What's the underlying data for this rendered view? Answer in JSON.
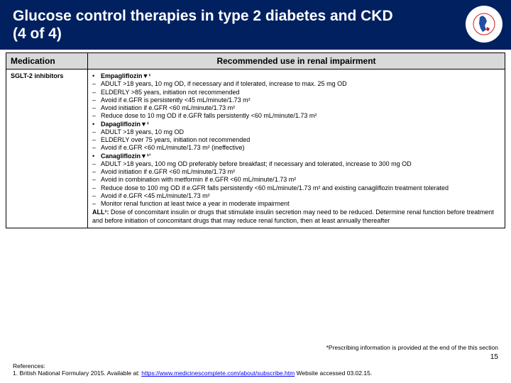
{
  "header": {
    "title": "Glucose control therapies in type 2 diabetes and CKD (4 of 4)",
    "logo_colors": {
      "outer_ring": "#c81e1e",
      "map": "#1e4fa3",
      "accent": "#c81e1e"
    }
  },
  "table": {
    "col_medication": "Medication",
    "col_recommended": "Recommended use in renal impairment",
    "medication": "SGLT-2 inhibitors",
    "rows": [
      {
        "marker": "•",
        "drug": true,
        "text": "Empagliflozin▼¹"
      },
      {
        "marker": "–",
        "text": "ADULT >18 years, 10 mg OD, if necessary and if tolerated, increase to max. 25 mg OD"
      },
      {
        "marker": "–",
        "text": "ELDERLY >85 years, initiation not recommended"
      },
      {
        "marker": "–",
        "text": "Avoid if e.GFR is persistently <45 mL/minute/1.73 m²"
      },
      {
        "marker": "–",
        "text": "Avoid initiation if e.GFR <60 mL/minute/1.73 m²"
      },
      {
        "marker": "–",
        "text": "Reduce dose to 10 mg OD if e.GFR falls persistently <60 mL/minute/1.73 m²"
      },
      {
        "marker": "•",
        "drug": true,
        "text": "Dapagliflozin▼¹"
      },
      {
        "marker": "–",
        "text": "ADULT >18 years, 10 mg OD"
      },
      {
        "marker": "–",
        "text": "ELDERLY over 75 years, initiation not recommended"
      },
      {
        "marker": "–",
        "text": "Avoid if e.GFR <60 mL/minute/1.73 m² (ineffective)"
      },
      {
        "marker": "•",
        "drug": true,
        "text": "Canagliflozin▼¹ʼ"
      },
      {
        "marker": "–",
        "text": "ADULT >18 years, 100 mg OD preferably before breakfast; if necessary and tolerated, increase to 300 mg OD"
      },
      {
        "marker": "–",
        "text": "Avoid initiation if e.GFR <60 mL/minute/1.73 m²"
      },
      {
        "marker": "–",
        "text": "Avoid in combination with metformin if e.GFR <60 mL/minute/1.73 m²"
      },
      {
        "marker": "–",
        "text": "Reduce dose to 100 mg OD if e.GFR falls persistently <60 mL/minute/1.73 m² and existing canagliflozin treatment tolerated"
      },
      {
        "marker": "–",
        "text": "Avoid if e.GFR <45 mL/minute/1.73 m²"
      },
      {
        "marker": "–",
        "text": "Monitor renal function at least twice a year in moderate impairment"
      }
    ],
    "all_label": "ALL¹:",
    "all_text": " Dose of concomitant insulin or drugs that stimulate insulin secretion may need to be reduced. Determine renal function before treatment and before initiation of concomitant drugs that may reduce renal function, then at least annually thereafter"
  },
  "footer": {
    "note_right": "*Prescribing information is provided at the end of the this section",
    "page_number": "15",
    "references_label": "References:",
    "ref1_pre": "1. British National Formulary 2015. Available at: ",
    "ref1_url": "https://www.medicinescomplete.com/about/subscribe.htm",
    "ref1_post": " Website accessed 03.02.15."
  }
}
